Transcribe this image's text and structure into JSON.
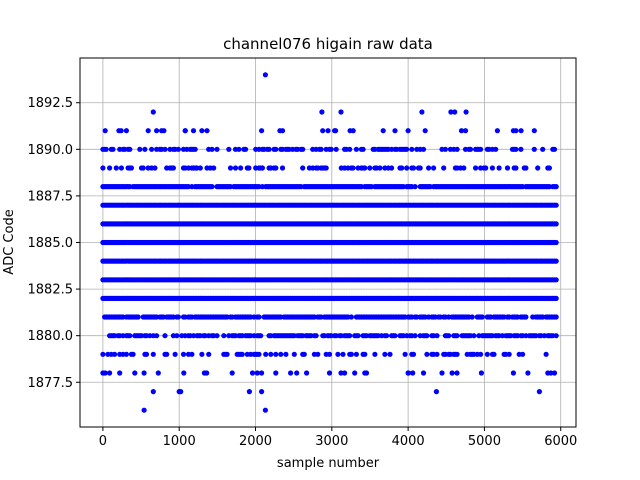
{
  "chart_data": {
    "type": "scatter",
    "title": "channel076 higain raw data",
    "xlabel": "sample number",
    "ylabel": "ADC Code",
    "xlim": [
      -300,
      6200
    ],
    "ylim": [
      1875.1,
      1894.9
    ],
    "xticks": [
      0,
      1000,
      2000,
      3000,
      4000,
      5000,
      6000
    ],
    "xtick_labels": [
      "0",
      "1000",
      "2000",
      "3000",
      "4000",
      "5000",
      "6000"
    ],
    "yticks": [
      1877.5,
      1880.0,
      1882.5,
      1885.0,
      1887.5,
      1890.0,
      1892.5
    ],
    "ytick_labels": [
      "1877.5",
      "1880.0",
      "1882.5",
      "1885.0",
      "1887.5",
      "1890.0",
      "1892.5"
    ],
    "grid": true,
    "marker_color": "#0000ff",
    "series": [
      {
        "x_range": [
          0,
          5950
        ],
        "levels": [
          {
            "y": 1882,
            "density": 1.0
          },
          {
            "y": 1883,
            "density": 1.0
          },
          {
            "y": 1884,
            "density": 1.0
          },
          {
            "y": 1885,
            "density": 1.0
          },
          {
            "y": 1886,
            "density": 1.0
          },
          {
            "y": 1887,
            "density": 1.0
          },
          {
            "y": 1888,
            "density": 0.9
          },
          {
            "y": 1881,
            "density": 0.8
          },
          {
            "y": 1880,
            "density": 0.6
          },
          {
            "y": 1889,
            "density": 0.35
          },
          {
            "y": 1890,
            "density": 0.4
          },
          {
            "y": 1879,
            "density": 0.3
          },
          {
            "y": 1878,
            "density": 0.06
          },
          {
            "y": 1891,
            "density": 0.05
          }
        ],
        "points": [
          [
            30,
            1891
          ],
          [
            210,
            1891
          ],
          [
            240,
            1891
          ],
          [
            1080,
            1891
          ],
          [
            2080,
            1891
          ],
          [
            2320,
            1891
          ],
          [
            2950,
            1891
          ],
          [
            3050,
            1891
          ],
          [
            3280,
            1891
          ],
          [
            4000,
            1891
          ],
          [
            4700,
            1891
          ],
          [
            5170,
            1891
          ],
          [
            5380,
            1891
          ],
          [
            5480,
            1891
          ],
          [
            800,
            1891
          ],
          [
            2880,
            1891
          ],
          [
            3240,
            1891
          ],
          [
            660,
            1892
          ],
          [
            2870,
            1892
          ],
          [
            3120,
            1892
          ],
          [
            4180,
            1892
          ],
          [
            4560,
            1892
          ],
          [
            4610,
            1892
          ],
          [
            4760,
            1892
          ],
          [
            2130,
            1894
          ],
          [
            30,
            1878
          ],
          [
            220,
            1878
          ],
          [
            540,
            1878
          ],
          [
            1060,
            1878
          ],
          [
            1330,
            1878
          ],
          [
            1360,
            1878
          ],
          [
            1960,
            1878
          ],
          [
            2080,
            1878
          ],
          [
            2460,
            1878
          ],
          [
            2540,
            1878
          ],
          [
            2670,
            1878
          ],
          [
            3120,
            1878
          ],
          [
            4000,
            1878
          ],
          [
            4060,
            1878
          ],
          [
            4640,
            1878
          ],
          [
            4960,
            1878
          ],
          [
            5380,
            1878
          ],
          [
            5570,
            1878
          ],
          [
            5870,
            1878
          ],
          [
            540,
            1876
          ],
          [
            660,
            1877
          ],
          [
            1000,
            1877
          ],
          [
            1020,
            1877
          ],
          [
            1920,
            1877
          ],
          [
            2080,
            1877
          ],
          [
            4370,
            1877
          ],
          [
            5720,
            1877
          ],
          [
            2130,
            1876
          ]
        ]
      }
    ]
  }
}
